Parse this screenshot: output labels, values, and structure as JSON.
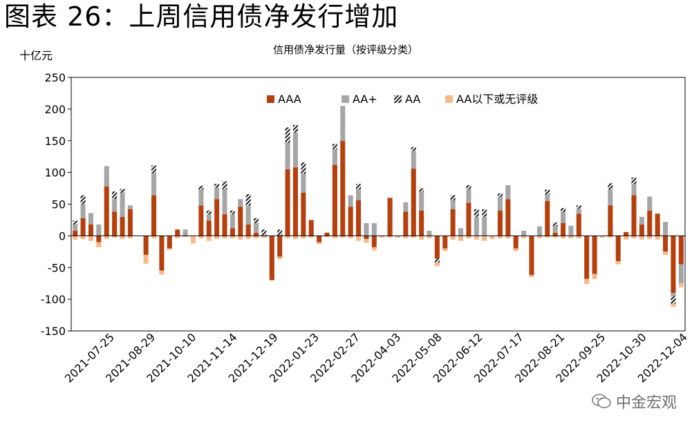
{
  "figure_title": "图表 26：上周信用债净发行增加",
  "watermark": "中金宏观",
  "colors": {
    "AAA": "#B5400E",
    "AA+": "#A6A6A6",
    "AA": "#1a1a1a",
    "below": "#F8B98A"
  },
  "chart_data": {
    "type": "bar",
    "stacked": true,
    "title": "信用债净发行量（按评级分类）",
    "ylabel": "十亿元",
    "ylim": [
      -150,
      250
    ],
    "yticks": [
      -150,
      -100,
      -50,
      0,
      50,
      100,
      150,
      200,
      250
    ],
    "legend": [
      "AAA",
      "AA+",
      "AA",
      "AA以下或无评级"
    ],
    "legend_position": "top",
    "tick_labels": [
      "2021-07-25",
      "2021-08-29",
      "2021-10-10",
      "2021-11-14",
      "2021-12-19",
      "2022-01-23",
      "2022-02-27",
      "2022-04-03",
      "2022-05-08",
      "2022-06-12",
      "2022-07-17",
      "2022-08-21",
      "2022-09-25",
      "2022-10-30",
      "2022-12-04"
    ],
    "series": [
      {
        "name": "AAA",
        "values": [
          8,
          28,
          18,
          -10,
          78,
          38,
          30,
          42,
          0,
          -30,
          64,
          -55,
          -20,
          10,
          0,
          0,
          48,
          24,
          58,
          34,
          12,
          46,
          18,
          5,
          0,
          -70,
          -33,
          105,
          108,
          68,
          25,
          -10,
          5,
          112,
          150,
          46,
          56,
          -5,
          -18,
          0,
          60,
          0,
          38,
          106,
          40,
          0,
          -36,
          -20,
          42,
          0,
          52,
          0,
          0,
          0,
          40,
          58,
          -20,
          0,
          -62,
          0,
          55,
          5,
          20,
          0,
          35,
          -68,
          -60,
          0,
          48,
          -40,
          6,
          64,
          18,
          40,
          35,
          -25,
          -90,
          -45
        ]
      },
      {
        "name": "AA+",
        "values": [
          10,
          22,
          18,
          18,
          32,
          20,
          38,
          6,
          0,
          0,
          35,
          0,
          0,
          0,
          10,
          0,
          25,
          10,
          18,
          40,
          22,
          12,
          30,
          15,
          0,
          0,
          0,
          42,
          55,
          30,
          0,
          0,
          0,
          25,
          55,
          18,
          18,
          20,
          20,
          0,
          0,
          0,
          15,
          28,
          30,
          8,
          0,
          0,
          14,
          12,
          22,
          30,
          30,
          0,
          22,
          22,
          0,
          8,
          0,
          15,
          10,
          10,
          18,
          16,
          8,
          0,
          0,
          0,
          25,
          0,
          0,
          18,
          12,
          22,
          0,
          22,
          -5,
          -30
        ]
      },
      {
        "name": "AA",
        "values": [
          6,
          14,
          0,
          0,
          0,
          12,
          6,
          0,
          0,
          0,
          12,
          0,
          0,
          0,
          0,
          0,
          6,
          6,
          6,
          12,
          6,
          0,
          18,
          8,
          10,
          0,
          10,
          24,
          12,
          18,
          0,
          0,
          0,
          8,
          0,
          0,
          8,
          0,
          0,
          0,
          0,
          0,
          0,
          6,
          5,
          0,
          -6,
          0,
          8,
          0,
          6,
          12,
          12,
          0,
          5,
          0,
          0,
          0,
          0,
          0,
          8,
          6,
          6,
          0,
          5,
          0,
          0,
          0,
          10,
          0,
          0,
          10,
          0,
          0,
          0,
          0,
          -12,
          0
        ]
      },
      {
        "name": "AA以下或无评级",
        "values": [
          -6,
          -5,
          -8,
          -8,
          -5,
          -3,
          -5,
          -4,
          0,
          -14,
          -4,
          -6,
          -2,
          -4,
          -2,
          -12,
          -4,
          -8,
          -5,
          -4,
          -4,
          -6,
          -5,
          -4,
          -3,
          0,
          -4,
          -4,
          -5,
          -4,
          -3,
          -3,
          -2,
          -4,
          -3,
          -4,
          -8,
          -6,
          -5,
          -3,
          -3,
          -3,
          -4,
          -3,
          -6,
          -4,
          -6,
          -4,
          -6,
          -8,
          -4,
          -6,
          -8,
          -5,
          -4,
          -4,
          -4,
          -4,
          -3,
          -4,
          -3,
          -3,
          -4,
          -4,
          -4,
          -8,
          -8,
          -3,
          -3,
          -5,
          -6,
          -4,
          -6,
          -5,
          -6,
          -5,
          -5,
          -6
        ]
      }
    ]
  }
}
